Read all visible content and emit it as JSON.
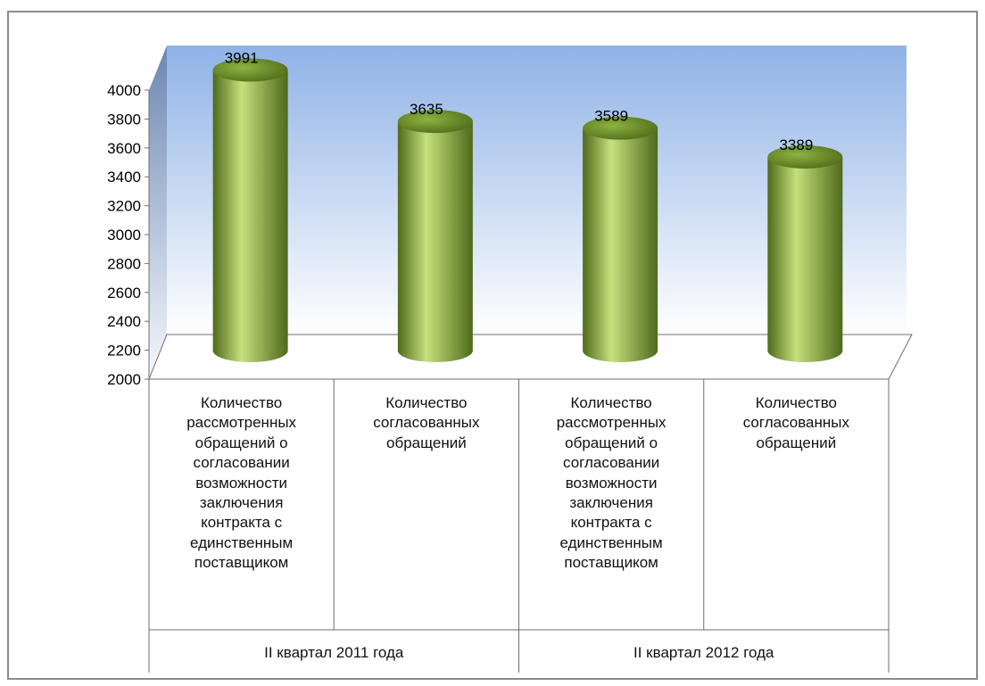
{
  "chart_data": {
    "type": "bar",
    "style": "3d-cylinder",
    "title": "",
    "xlabel": "",
    "ylabel": "",
    "ylim": [
      2000,
      4000
    ],
    "yticks": [
      2000,
      2200,
      2400,
      2600,
      2800,
      3000,
      3200,
      3400,
      3600,
      3800,
      4000
    ],
    "categories": [
      "Количество рассмотренных обращений о согласовании возможности заключения контракта с единственным поставщиком",
      "Количество согласованных обращений",
      "Количество рассмотренных обращений о согласовании возможности заключения контракта с единственным поставщиком",
      "Количество согласованных обращений"
    ],
    "category_lines": [
      [
        "Количество",
        "рассмотренных",
        "обращений о",
        "согласовании",
        "возможности",
        "заключения",
        "контракта с",
        "единственным",
        "поставщиком"
      ],
      [
        "Количество",
        "согласованных",
        "обращений"
      ],
      [
        "Количество",
        "рассмотренных",
        "обращений о",
        "согласовании",
        "возможности",
        "заключения",
        "контракта с",
        "единственным",
        "поставщиком"
      ],
      [
        "Количество",
        "согласованных",
        "обращений"
      ]
    ],
    "groups": [
      {
        "label": "II квартал 2011 года",
        "span": [
          0,
          1
        ]
      },
      {
        "label": "II квартал 2012 года",
        "span": [
          2,
          3
        ]
      }
    ],
    "values": [
      3991,
      3635,
      3589,
      3389
    ],
    "data_labels": [
      "3991",
      "3635",
      "3589",
      "3389"
    ],
    "legend": "none",
    "grid": false,
    "colors": {
      "bar": "#8db33f",
      "bar_light": "#c6e07d",
      "bar_dark": "#4f6a1a",
      "wall_top": "#8fb2e6",
      "wall_bottom": "#ffffff",
      "side_wall_top": "#6c87b3",
      "side_wall_bottom": "#f5f8fd",
      "axis": "#6e6e6e"
    }
  }
}
